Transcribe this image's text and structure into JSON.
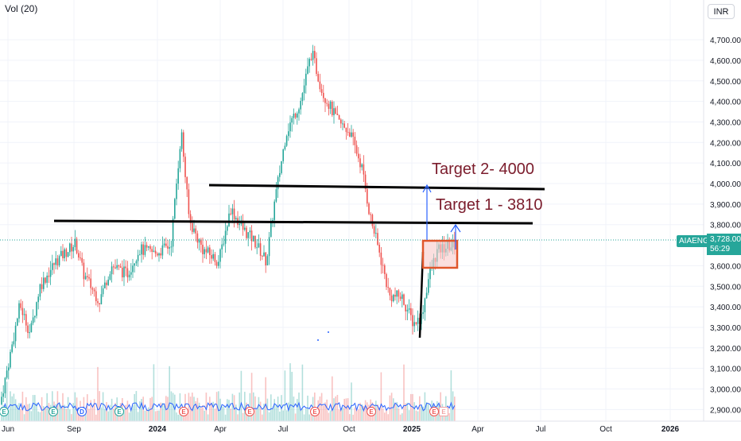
{
  "pane": {
    "volume_label": "Vol (20)",
    "currency": "INR"
  },
  "symbol": {
    "ticker": "AIAENG",
    "last_price": "3,728.00",
    "countdown": "56:29"
  },
  "price_axis": {
    "ticks": [
      "4,700.00",
      "4,600.00",
      "4,500.00",
      "4,400.00",
      "4,300.00",
      "4,200.00",
      "4,100.00",
      "4,000.00",
      "3,900.00",
      "3,800.00",
      "3,600.00",
      "3,500.00",
      "3,400.00",
      "3,300.00",
      "3,200.00",
      "3,100.00",
      "3,000.00",
      "2,900.00"
    ],
    "range": [
      2860,
      4870
    ]
  },
  "time_axis": {
    "labels": [
      "Jun",
      "Sep",
      "2024",
      "Apr",
      "Jul",
      "Oct",
      "2025",
      "Apr",
      "Jul",
      "Oct",
      "2026"
    ],
    "bold": [
      "2024",
      "2025",
      "2026"
    ]
  },
  "annotations": {
    "target1": "Target 1 - 3810",
    "target2": "Target 2- 4000"
  },
  "events": {
    "badges": [
      "E",
      "E",
      "D",
      "E",
      "E",
      "E",
      "E",
      "E",
      "E",
      "E"
    ]
  },
  "colors": {
    "up": "#26a69a",
    "down": "#ef5350",
    "volume_ma": "#2962ff",
    "annotation_text": "#7b1c2c",
    "arrow": "#2962ff",
    "box_border": "#e0562b",
    "box_fill": "#f8c9c9"
  }
}
